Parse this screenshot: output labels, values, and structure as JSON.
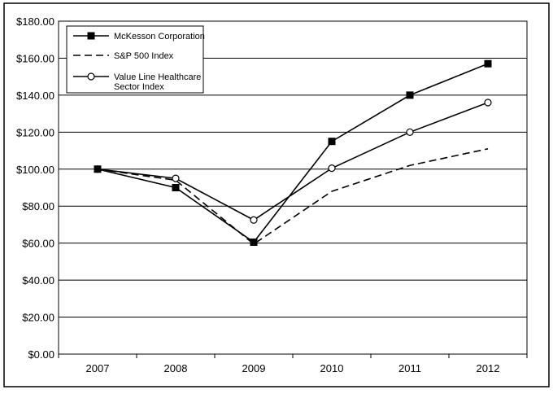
{
  "chart_data": {
    "type": "line",
    "title": "",
    "xlabel": "",
    "ylabel": "",
    "categories": [
      "2007",
      "2008",
      "2009",
      "2010",
      "2011",
      "2012"
    ],
    "ylim": [
      0,
      180
    ],
    "y_ticks": [
      "$0.00",
      "$20.00",
      "$40.00",
      "$60.00",
      "$80.00",
      "$100.00",
      "$120.00",
      "$140.00",
      "$160.00",
      "$180.00"
    ],
    "grid": "horizontal",
    "legend_position": "top-left",
    "series": [
      {
        "name": "McKesson Corporation",
        "values": [
          100,
          90,
          60.5,
          115,
          140,
          157
        ],
        "line": "solid",
        "marker": "filled-square"
      },
      {
        "name": "S&P 500 Index",
        "values": [
          100,
          94,
          59.5,
          88,
          102,
          111
        ],
        "line": "dashed",
        "marker": "none"
      },
      {
        "name": "Value Line Healthcare Sector Index",
        "values": [
          100,
          95,
          72.5,
          100.5,
          120,
          136
        ],
        "line": "solid",
        "marker": "open-circle"
      }
    ]
  },
  "legend": {
    "items": [
      {
        "lines": [
          "McKesson Corporation"
        ]
      },
      {
        "lines": [
          "S&P 500 Index"
        ]
      },
      {
        "lines": [
          "Value Line Healthcare",
          "Sector Index"
        ]
      }
    ]
  },
  "colors": {
    "line": "#000000",
    "background": "#ffffff"
  }
}
